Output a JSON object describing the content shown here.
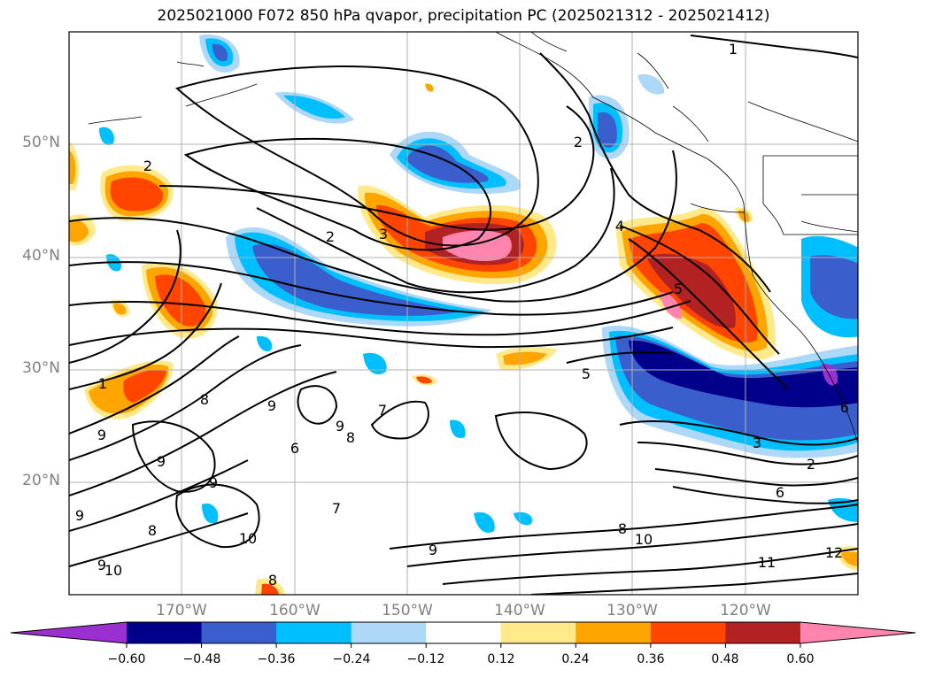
{
  "title": "2025021000 F072 850 hPa qvapor, precipitation PC (2025021312 - 2025021412)",
  "lat_labels": [
    "50°N",
    "40°N",
    "30°N",
    "20°N"
  ],
  "lon_labels": [
    "170°W",
    "160°W",
    "150°W",
    "140°W",
    "130°W",
    "120°W"
  ],
  "colorbar": {
    "tick_labels": [
      "−0.60",
      "−0.48",
      "−0.36",
      "−0.24",
      "−0.12",
      "0.12",
      "0.24",
      "0.36",
      "0.48",
      "0.60"
    ],
    "colors": [
      "#9b30d0",
      "#00008b",
      "#3a5fcd",
      "#00bfff",
      "#add8f7",
      "#ffffff",
      "#ffe98a",
      "#ffa500",
      "#ff4500",
      "#b22222",
      "#ff85ae"
    ]
  },
  "contour_labels": [
    "1",
    "2",
    "2",
    "2",
    "3",
    "4",
    "5",
    "5",
    "1",
    "9",
    "8",
    "9",
    "9",
    "9",
    "9",
    "8",
    "6",
    "9",
    "10",
    "8",
    "10",
    "9",
    "8",
    "9",
    "8",
    "10",
    "11",
    "12",
    "3",
    "2",
    "6",
    "7",
    "7",
    "6"
  ]
}
